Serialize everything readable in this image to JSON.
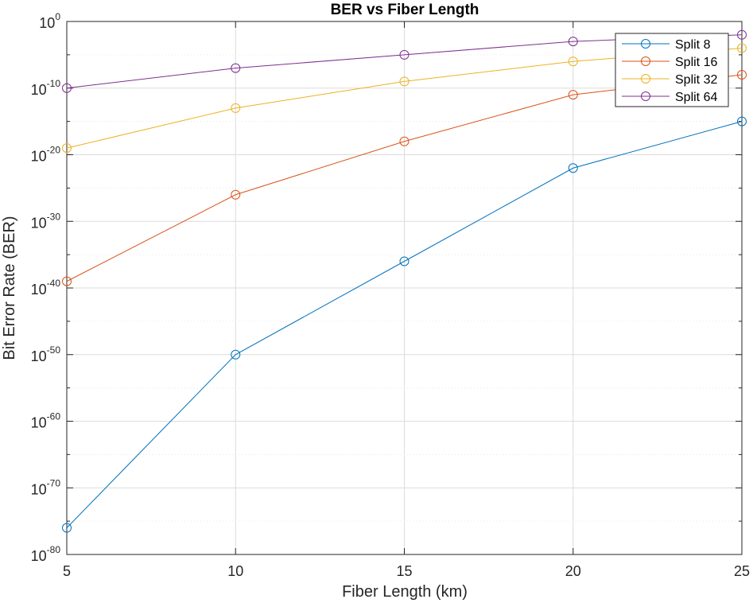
{
  "chart_data": {
    "type": "line",
    "title": "BER vs Fiber Length",
    "xlabel": "Fiber Length (km)",
    "ylabel": "Bit Error Rate (BER)",
    "x": [
      5,
      10,
      15,
      20,
      25
    ],
    "xlim": [
      5,
      25
    ],
    "xticks": [
      "5",
      "10",
      "15",
      "20",
      "25"
    ],
    "yscale": "log",
    "ylim_exponents": [
      -80,
      0
    ],
    "yticks": [
      {
        "base": "10",
        "exp": "0"
      },
      {
        "base": "10",
        "exp": "-10"
      },
      {
        "base": "10",
        "exp": "-20"
      },
      {
        "base": "10",
        "exp": "-30"
      },
      {
        "base": "10",
        "exp": "-40"
      },
      {
        "base": "10",
        "exp": "-50"
      },
      {
        "base": "10",
        "exp": "-60"
      },
      {
        "base": "10",
        "exp": "-70"
      },
      {
        "base": "10",
        "exp": "-80"
      }
    ],
    "grid": true,
    "legend_position": "top-right",
    "marker": "circle",
    "series": [
      {
        "name": "Split 8",
        "color": "#0072BD",
        "values": [
          "1e-76",
          "1e-50",
          "1e-36",
          "1e-22",
          "1e-15"
        ]
      },
      {
        "name": "Split 16",
        "color": "#D95319",
        "values": [
          "1e-39",
          "1e-26",
          "1e-18",
          "1e-11",
          "1e-8"
        ]
      },
      {
        "name": "Split 32",
        "color": "#EDB120",
        "values": [
          "1e-19",
          "1e-13",
          "1e-9",
          "1e-6",
          "1e-4"
        ]
      },
      {
        "name": "Split 64",
        "color": "#7E2F8E",
        "values": [
          "1e-10",
          "1e-7",
          "1e-5",
          "1e-3.3",
          "1e-2.3"
        ]
      }
    ]
  }
}
